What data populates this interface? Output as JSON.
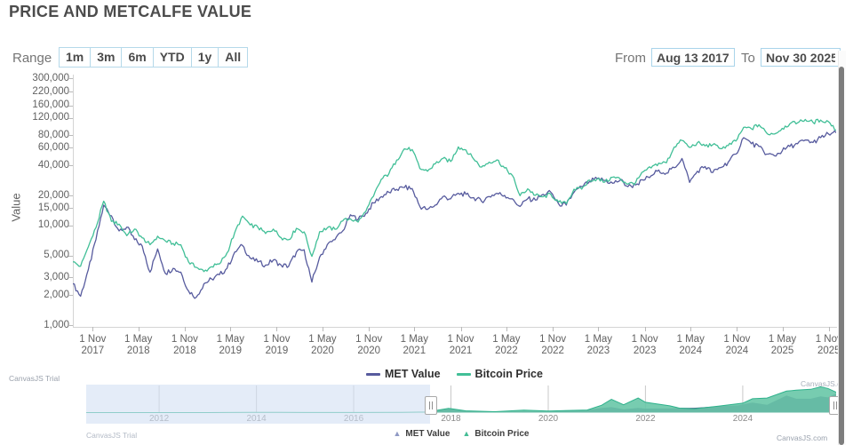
{
  "title": "PRICE AND METCALFE VALUE",
  "toolbar": {
    "range_label": "Range",
    "range_buttons": [
      "1m",
      "3m",
      "6m",
      "YTD",
      "1y",
      "All"
    ],
    "from_label": "From",
    "from_value": "Aug 13 2017",
    "to_label": "To",
    "to_value": "Nov 30 2025"
  },
  "chart_data": {
    "type": "line",
    "title": "PRICE AND METCALFE VALUE",
    "xlabel": "",
    "ylabel": "Value",
    "y_scale": "log",
    "ylim": [
      1000,
      300000
    ],
    "y_ticks": [
      300000,
      220000,
      160000,
      120000,
      80000,
      60000,
      40000,
      20000,
      15000,
      10000,
      5000,
      3000,
      2000,
      1000
    ],
    "y_tick_labels": [
      "300,000",
      "220,000",
      "160,000",
      "120,000",
      "80,000",
      "60,000",
      "40,000",
      "20,000",
      "15,000",
      "10,000",
      "5,000",
      "3,000",
      "2,000",
      "1,000"
    ],
    "x_ticks": [
      {
        "line1": "1 Nov",
        "line2": "2017",
        "frac": 0.026
      },
      {
        "line1": "1 May",
        "line2": "2018",
        "frac": 0.0858
      },
      {
        "line1": "1 Nov",
        "line2": "2018",
        "frac": 0.1466
      },
      {
        "line1": "1 May",
        "line2": "2019",
        "frac": 0.2064
      },
      {
        "line1": "1 Nov",
        "line2": "2019",
        "frac": 0.2671
      },
      {
        "line1": "1 May",
        "line2": "2020",
        "frac": 0.3271
      },
      {
        "line1": "1 Nov",
        "line2": "2020",
        "frac": 0.3879
      },
      {
        "line1": "1 May",
        "line2": "2021",
        "frac": 0.4474
      },
      {
        "line1": "1 Nov",
        "line2": "2021",
        "frac": 0.5082
      },
      {
        "line1": "1 May",
        "line2": "2022",
        "frac": 0.568
      },
      {
        "line1": "1 Nov",
        "line2": "2022",
        "frac": 0.6288
      },
      {
        "line1": "1 May",
        "line2": "2023",
        "frac": 0.6885
      },
      {
        "line1": "1 Nov",
        "line2": "2023",
        "frac": 0.7493
      },
      {
        "line1": "1 May",
        "line2": "2024",
        "frac": 0.8093
      },
      {
        "line1": "1 Nov",
        "line2": "2024",
        "frac": 0.8701
      },
      {
        "line1": "1 May",
        "line2": "2025",
        "frac": 0.9296
      },
      {
        "line1": "1 Nov",
        "line2": "2025",
        "frac": 0.9904
      }
    ],
    "x_range": [
      "Aug 13 2017",
      "Nov 30 2025"
    ],
    "x_sampling": "monthly",
    "legend_position": "bottom",
    "grid": false,
    "series": [
      {
        "name": "MET Value",
        "color": "#575b9e",
        "values": [
          2600,
          1950,
          3600,
          7200,
          16000,
          12500,
          8800,
          9600,
          7200,
          6200,
          3400,
          5800,
          3300,
          3700,
          3400,
          2200,
          1900,
          2600,
          2900,
          3200,
          3700,
          5400,
          6300,
          4700,
          4300,
          4000,
          4500,
          4000,
          3900,
          5400,
          5700,
          2700,
          4800,
          6400,
          7200,
          8800,
          12800,
          11500,
          13200,
          16800,
          19500,
          21500,
          23000,
          24000,
          23500,
          15500,
          14500,
          16000,
          19500,
          18500,
          21000,
          20500,
          19000,
          17500,
          19500,
          21000,
          20000,
          18500,
          15500,
          18500,
          18000,
          20500,
          21500,
          16500,
          16000,
          21500,
          24500,
          27500,
          29500,
          28300,
          26500,
          28500,
          24500,
          25500,
          28500,
          31500,
          36000,
          33500,
          38000,
          47000,
          27000,
          35000,
          39000,
          34000,
          38000,
          43000,
          52000,
          76000,
          66000,
          62000,
          52000,
          50000,
          56000,
          62000,
          66000,
          72000,
          68000,
          76000,
          83000,
          85000
        ]
      },
      {
        "name": "Bitcoin Price",
        "color": "#41bf97",
        "values": [
          4300,
          3900,
          6100,
          9500,
          17500,
          11000,
          10300,
          7900,
          9200,
          7500,
          6400,
          7800,
          7000,
          6600,
          6400,
          4300,
          3800,
          3450,
          3850,
          4100,
          5300,
          8500,
          12400,
          10100,
          9600,
          8300,
          9200,
          7550,
          7200,
          9350,
          8600,
          4900,
          8650,
          9450,
          9150,
          11100,
          11650,
          10800,
          13800,
          19700,
          29000,
          33100,
          45200,
          58800,
          57800,
          37300,
          35000,
          41500,
          47000,
          43800,
          61300,
          57000,
          46200,
          38500,
          43200,
          45500,
          37700,
          31800,
          19900,
          23300,
          20050,
          19400,
          20500,
          17150,
          16550,
          23100,
          23150,
          28500,
          29250,
          27200,
          30450,
          29250,
          25950,
          26950,
          34650,
          37700,
          42250,
          42550,
          61200,
          71300,
          60600,
          67500,
          62700,
          64600,
          58950,
          63300,
          70200,
          96400,
          93400,
          102400,
          84350,
          82550,
          94200,
          104600,
          107100,
          115800,
          108200,
          114000,
          110100,
          90500
        ]
      }
    ]
  },
  "navigator": {
    "year_labels": [
      "2012",
      "2014",
      "2016",
      "2018",
      "2020",
      "2022",
      "2024"
    ],
    "year_values": [
      2012,
      2014,
      2016,
      2018,
      2020,
      2022,
      2024
    ],
    "x_range_years": [
      2010.5,
      2025.92
    ],
    "selected_from_year": 2017.62,
    "legend": [
      {
        "label": "MET Value",
        "color": "#8f99c4"
      },
      {
        "label": "Bitcoin Price",
        "color": "#45bd95"
      }
    ],
    "met_area": {
      "color_fill": "#3c4280",
      "points": [
        [
          2010.5,
          0
        ],
        [
          2013.5,
          100
        ],
        [
          2013.9,
          600
        ],
        [
          2014.5,
          400
        ],
        [
          2015,
          200
        ],
        [
          2016,
          350
        ],
        [
          2017,
          900
        ],
        [
          2017.5,
          1800
        ],
        [
          2017.95,
          16000
        ],
        [
          2018.3,
          8500
        ],
        [
          2018.9,
          2000
        ],
        [
          2019.5,
          6000
        ],
        [
          2020,
          4500
        ],
        [
          2020.8,
          12000
        ],
        [
          2021.1,
          21000
        ],
        [
          2021.3,
          24000
        ],
        [
          2021.55,
          15000
        ],
        [
          2021.85,
          21000
        ],
        [
          2022,
          18000
        ],
        [
          2022.5,
          18500
        ],
        [
          2022.7,
          20500
        ],
        [
          2023,
          21500
        ],
        [
          2023.5,
          28300
        ],
        [
          2023.9,
          32000
        ],
        [
          2024.2,
          45000
        ],
        [
          2024.5,
          35000
        ],
        [
          2024.9,
          76000
        ],
        [
          2025.1,
          62000
        ],
        [
          2025.4,
          62000
        ],
        [
          2025.6,
          72000
        ],
        [
          2025.75,
          68000
        ],
        [
          2025.92,
          85000
        ]
      ]
    },
    "btc_area": {
      "color_fill": "#68c7a7",
      "color_line": "#2fb28c",
      "points": [
        [
          2010.5,
          1
        ],
        [
          2011,
          30
        ],
        [
          2011.5,
          15
        ],
        [
          2012,
          10
        ],
        [
          2013,
          100
        ],
        [
          2013.9,
          1100
        ],
        [
          2014.5,
          600
        ],
        [
          2015,
          250
        ],
        [
          2016,
          430
        ],
        [
          2017,
          1000
        ],
        [
          2017.5,
          2500
        ],
        [
          2017.95,
          19000
        ],
        [
          2018.3,
          8000
        ],
        [
          2018.9,
          3900
        ],
        [
          2019.5,
          11000
        ],
        [
          2020,
          7200
        ],
        [
          2020.8,
          11500
        ],
        [
          2021.1,
          33000
        ],
        [
          2021.3,
          59000
        ],
        [
          2021.55,
          35000
        ],
        [
          2021.85,
          65000
        ],
        [
          2022,
          46000
        ],
        [
          2022.5,
          30000
        ],
        [
          2022.7,
          20000
        ],
        [
          2023,
          16500
        ],
        [
          2023.5,
          29000
        ],
        [
          2024,
          42000
        ],
        [
          2024.2,
          62000
        ],
        [
          2024.5,
          65000
        ],
        [
          2024.9,
          96000
        ],
        [
          2025.1,
          100000
        ],
        [
          2025.4,
          104000
        ],
        [
          2025.6,
          115000
        ],
        [
          2025.75,
          108000
        ],
        [
          2025.92,
          91000
        ]
      ]
    }
  },
  "watermarks": {
    "trial": "CanvasJS Trial",
    "site": "CanvasJS.com"
  }
}
